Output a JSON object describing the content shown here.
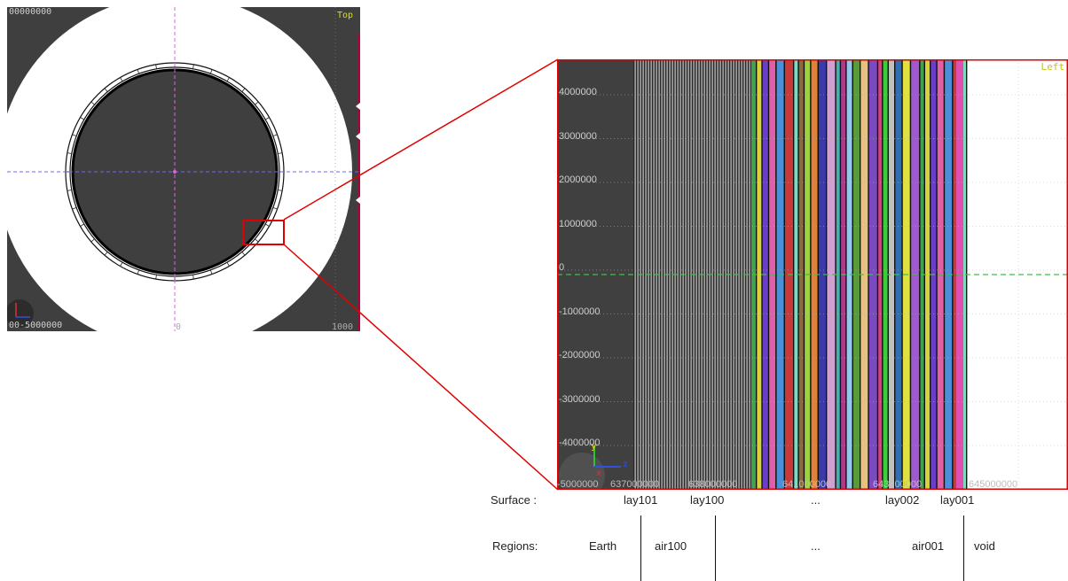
{
  "top_view": {
    "view_label": "Top",
    "corner_top_left": "00000000",
    "corner_bottom_left": "00-5000000",
    "corner_bottom_center": "0",
    "corner_bottom_right": "1000"
  },
  "zoom_view": {
    "view_label": "Left",
    "y_ticks": [
      "4000000",
      "3000000",
      "2000000",
      "1000000",
      "0",
      "-1000000",
      "-2000000",
      "-3000000",
      "-4000000"
    ],
    "x_ticks": [
      "-5000000",
      "637000000",
      "638000000",
      "641000000",
      "643000000",
      "645000000"
    ],
    "axis_y_label": "y",
    "axis_x_label": "x",
    "axis_z_label": "z"
  },
  "legend": {
    "surface_label": "Surface :",
    "surfaces": [
      "lay101",
      "lay100",
      "...",
      "lay002",
      "lay001"
    ],
    "regions_label": "Regions:",
    "regions": [
      "Earth",
      "air100",
      "...",
      "air001",
      "void"
    ]
  },
  "colors": {
    "viewport_bg": "#3f3f3f",
    "highlight": "#e00000",
    "guide_magenta": "#e060e0",
    "guide_blue": "#6a6af0",
    "guide_green": "#40c040"
  }
}
